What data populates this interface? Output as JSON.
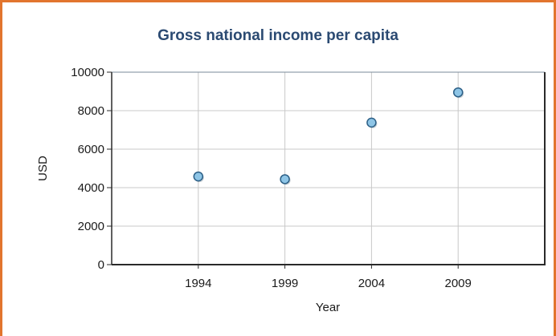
{
  "chart_data": {
    "type": "scatter",
    "title": "Gross national income per capita",
    "xlabel": "Year",
    "ylabel": "USD",
    "x": [
      1994,
      1999,
      2004,
      2009
    ],
    "y": [
      4580,
      4440,
      7380,
      8950
    ],
    "xticks": [
      1994,
      1999,
      2004,
      2009
    ],
    "yticks": [
      0,
      2000,
      4000,
      6000,
      8000,
      10000
    ],
    "xlim": [
      1989,
      2014
    ],
    "ylim": [
      0,
      10000
    ],
    "grid": true,
    "marker_color": "#8ec5e6",
    "marker_edge_color": "#2c5f86",
    "frame_color": "#e2752e"
  }
}
